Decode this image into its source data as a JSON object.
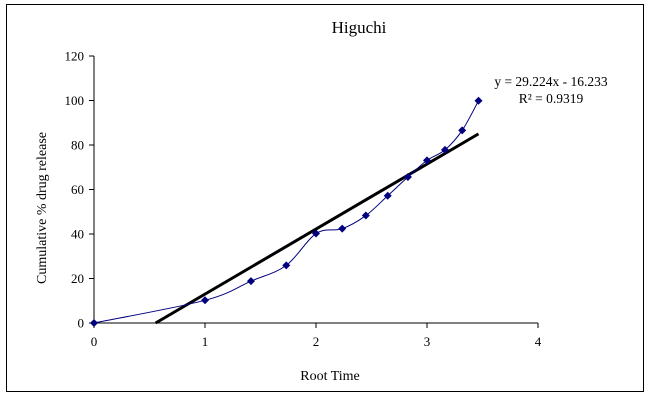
{
  "chart_data": {
    "type": "scatter",
    "title": "Higuchi",
    "xlabel": "Root Time",
    "ylabel": "Cumulative % drug release",
    "xlim": [
      0,
      4
    ],
    "ylim": [
      0,
      120
    ],
    "x_ticks": [
      "0",
      "1",
      "2",
      "3",
      "4"
    ],
    "y_ticks": [
      "0",
      "20",
      "40",
      "60",
      "80",
      "100",
      "120"
    ],
    "grid": false,
    "legend": false,
    "series": [
      {
        "x": [
          0,
          1,
          1.414,
          1.732,
          2,
          2.236,
          2.449,
          2.646,
          2.828,
          3,
          3.162,
          3.317,
          3.464
        ],
        "y": [
          0,
          10.2,
          18.8,
          25.9,
          40.2,
          42.4,
          48.3,
          57.2,
          65.6,
          73.1,
          77.8,
          86.6,
          99.9
        ],
        "color": "#00007f",
        "marker": "diamond",
        "smooth_line": true
      }
    ],
    "trendline": {
      "equation": "y = 29.224x - 16.233",
      "r_squared": "R² = 0.9319",
      "slope": 29.224,
      "intercept": -16.233,
      "color": "#000000"
    }
  }
}
